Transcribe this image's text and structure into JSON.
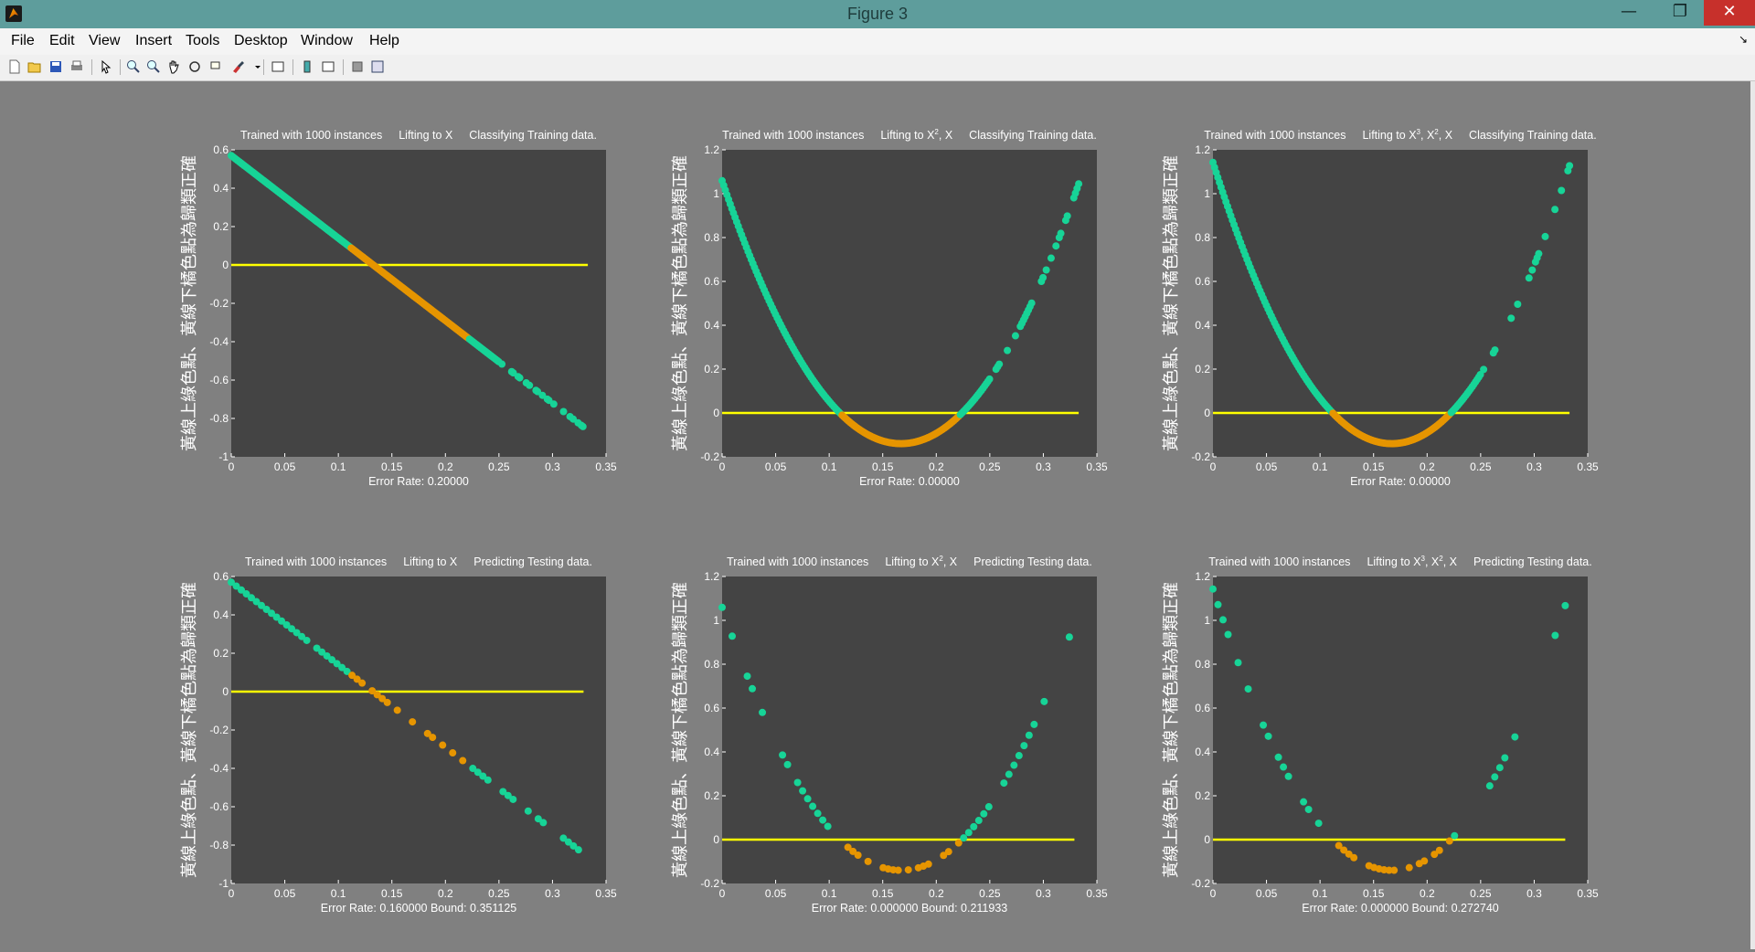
{
  "window": {
    "title": "Figure 3",
    "minimize": "—",
    "maximize": "❐",
    "close": "✕"
  },
  "menu": [
    "File",
    "Edit",
    "View",
    "Insert",
    "Tools",
    "Desktop",
    "Window",
    "Help"
  ],
  "toolbar_icons": [
    "new-figure-icon",
    "open-file-icon",
    "save-icon",
    "print-icon",
    "select-arrow-icon",
    "zoom-in-icon",
    "zoom-out-icon",
    "pan-icon",
    "rotate-3d-icon",
    "data-cursor-icon",
    "brush-icon",
    "brush-dropdown-icon",
    "link-plot-icon",
    "insert-colorbar-icon",
    "insert-legend-icon",
    "hide-plot-tools-icon",
    "show-plot-tools-icon"
  ],
  "colors": {
    "above": "#17d497",
    "below": "#e69500",
    "line": "#ffff00",
    "axes_bg": "#444444"
  },
  "chart_data": [
    {
      "type": "scatter",
      "title_parts": [
        "Trained with 1000 instances",
        "Lifting to X",
        "Classifying Training data."
      ],
      "ylabel": "黃線上綠色點、黃線下橘色點為歸類正確",
      "xlabel": "Error Rate: 0.20000",
      "xlim": [
        0,
        0.35
      ],
      "ylim": [
        -1,
        0.6
      ],
      "xticks": [
        "0",
        "0.05",
        "0.1",
        "0.15",
        "0.2",
        "0.25",
        "0.3",
        "0.35"
      ],
      "yticks": [
        "0.6",
        "0.4",
        "0.2",
        "0",
        "-0.2",
        "-0.4",
        "-0.6",
        "-0.8",
        "-1"
      ],
      "curve": {
        "kind": "linear",
        "coeffs": [
          0.57,
          -4.3
        ]
      },
      "x_range": [
        0,
        0.333
      ],
      "orange_range": [
        0.111,
        0.222
      ],
      "reference_line": {
        "y": 0,
        "x": [
          0,
          0.333
        ]
      },
      "points": "dense"
    },
    {
      "type": "scatter",
      "title_parts": [
        "Trained with 1000 instances",
        "Lifting to X2, X",
        "Classifying Training data."
      ],
      "ylabel": "黃線上綠色點、黃線下橘色點為歸類正確",
      "xlabel": "Error Rate: 0.00000",
      "xlim": [
        0,
        0.35
      ],
      "ylim": [
        -0.2,
        1.2
      ],
      "xticks": [
        "0",
        "0.05",
        "0.1",
        "0.15",
        "0.2",
        "0.25",
        "0.3",
        "0.35"
      ],
      "yticks": [
        "1.2",
        "1",
        "0.8",
        "0.6",
        "0.4",
        "0.2",
        "0",
        "-0.2"
      ],
      "curve": {
        "kind": "parabola",
        "vertex_x": 0.167,
        "vertex_y": -0.14,
        "a": 43
      },
      "x_range": [
        0,
        0.333
      ],
      "orange_range": [
        0.111,
        0.222
      ],
      "reference_line": {
        "y": 0,
        "x": [
          0,
          0.333
        ]
      },
      "points": "dense"
    },
    {
      "type": "scatter",
      "title_parts": [
        "Trained with 1000 instances",
        "Lifting to X3, X2, X",
        "Classifying Training data."
      ],
      "ylabel": "黃線上綠色點、黃線下橘色點為歸類正確",
      "xlabel": "Error Rate: 0.00000",
      "xlim": [
        0,
        0.35
      ],
      "ylim": [
        -0.2,
        1.2
      ],
      "xticks": [
        "0",
        "0.05",
        "0.1",
        "0.15",
        "0.2",
        "0.25",
        "0.3",
        "0.35"
      ],
      "yticks": [
        "1.2",
        "1",
        "0.8",
        "0.6",
        "0.4",
        "0.2",
        "0",
        "-0.2"
      ],
      "curve": {
        "kind": "parabola",
        "vertex_x": 0.167,
        "vertex_y": -0.14,
        "a": 46
      },
      "x_range": [
        0,
        0.333
      ],
      "orange_range": [
        0.111,
        0.222
      ],
      "reference_line": {
        "y": 0,
        "x": [
          0,
          0.333
        ]
      },
      "points": "dense"
    },
    {
      "type": "scatter",
      "title_parts": [
        "Trained with 1000 instances",
        "Lifting to X",
        "Predicting Testing data."
      ],
      "ylabel": "黃線上綠色點、黃線下橘色點為歸類正確",
      "xlabel": "Error Rate: 0.160000    Bound: 0.351125",
      "xlim": [
        0,
        0.35
      ],
      "ylim": [
        -1,
        0.6
      ],
      "xticks": [
        "0",
        "0.05",
        "0.1",
        "0.15",
        "0.2",
        "0.25",
        "0.3",
        "0.35"
      ],
      "yticks": [
        "0.6",
        "0.4",
        "0.2",
        "0",
        "-0.2",
        "-0.4",
        "-0.6",
        "-0.8",
        "-1"
      ],
      "curve": {
        "kind": "linear",
        "coeffs": [
          0.57,
          -4.3
        ]
      },
      "x_range": [
        0,
        0.329
      ],
      "orange_range": [
        0.111,
        0.222
      ],
      "reference_line": {
        "y": 0,
        "x": [
          0,
          0.329
        ]
      },
      "points": "sparse"
    },
    {
      "type": "scatter",
      "title_parts": [
        "Trained with 1000 instances",
        "Lifting to X2, X",
        "Predicting Testing data."
      ],
      "ylabel": "黃線上綠色點、黃線下橘色點為歸類正確",
      "xlabel": "Error Rate: 0.000000    Bound: 0.211933",
      "xlim": [
        0,
        0.35
      ],
      "ylim": [
        -0.2,
        1.2
      ],
      "xticks": [
        "0",
        "0.05",
        "0.1",
        "0.15",
        "0.2",
        "0.25",
        "0.3",
        "0.35"
      ],
      "yticks": [
        "1.2",
        "1",
        "0.8",
        "0.6",
        "0.4",
        "0.2",
        "0",
        "-0.2"
      ],
      "curve": {
        "kind": "parabola",
        "vertex_x": 0.167,
        "vertex_y": -0.14,
        "a": 43
      },
      "x_range": [
        0,
        0.329
      ],
      "orange_range": [
        0.111,
        0.222
      ],
      "reference_line": {
        "y": 0,
        "x": [
          0,
          0.329
        ]
      },
      "points": "sparse"
    },
    {
      "type": "scatter",
      "title_parts": [
        "Trained with 1000 instances",
        "Lifting to X3, X2, X",
        "Predicting Testing data."
      ],
      "ylabel": "黃線上綠色點、黃線下橘色點為歸類正確",
      "xlabel": "Error Rate: 0.000000    Bound: 0.272740",
      "xlim": [
        0,
        0.35
      ],
      "ylim": [
        -0.2,
        1.2
      ],
      "xticks": [
        "0",
        "0.05",
        "0.1",
        "0.15",
        "0.2",
        "0.25",
        "0.3",
        "0.35"
      ],
      "yticks": [
        "1.2",
        "1",
        "0.8",
        "0.6",
        "0.4",
        "0.2",
        "0",
        "-0.2"
      ],
      "curve": {
        "kind": "parabola",
        "vertex_x": 0.167,
        "vertex_y": -0.14,
        "a": 46
      },
      "x_range": [
        0,
        0.329
      ],
      "orange_range": [
        0.111,
        0.222
      ],
      "reference_line": {
        "y": 0,
        "x": [
          0,
          0.329
        ]
      },
      "points": "sparse"
    }
  ]
}
